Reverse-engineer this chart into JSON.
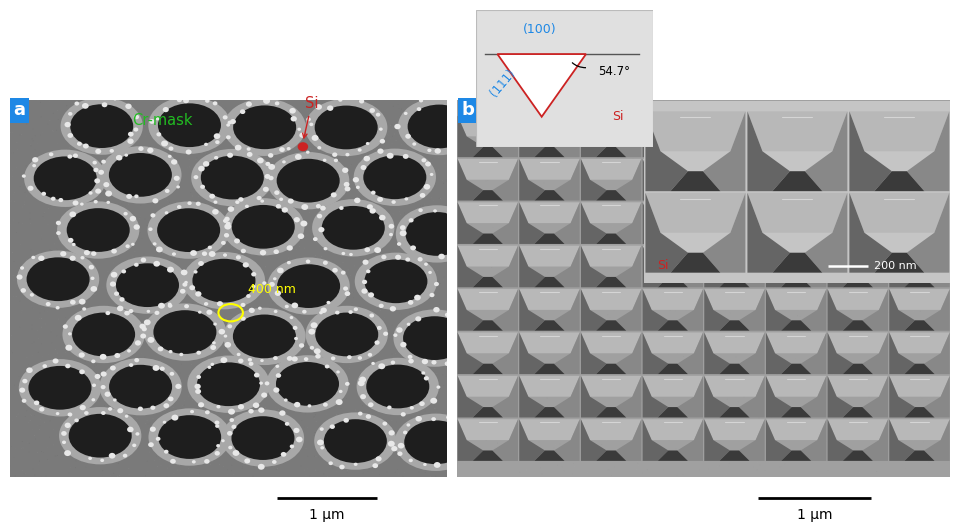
{
  "fig_width": 9.58,
  "fig_height": 5.24,
  "dpi": 100,
  "bg_color": "#ffffff",
  "panel_a_label": "a",
  "panel_b_label": "b",
  "label_bg_color": "#1E88E5",
  "label_text_color": "#ffffff",
  "cr_mask_text": "Cr-mask",
  "cr_mask_color": "#22bb22",
  "si_text_a": "Si",
  "si_text_a_color": "#cc2222",
  "scale_bar_a_text": "1 μm",
  "scale_bar_b_text": "1 μm",
  "circle_text": "400 nm",
  "circle_color": "#ffff00",
  "inset_border_color": "#cc2222",
  "inset_si_text": "Si",
  "inset_si_color": "#cc2222",
  "inset_scale_text": "200 nm",
  "inset_scale_color": "#ffffff",
  "diagram_100_text": "(100)",
  "diagram_100_color": "#1E88E5",
  "diagram_111_text": "(111)",
  "diagram_111_color": "#1E88E5",
  "diagram_angle_text": "54.7°",
  "diagram_si_text": "Si",
  "diagram_si_color": "#cc2222",
  "panel_a_sem_gray": "#7a7a7a",
  "panel_b_sem_gray": "#a0a0a0",
  "header_color": "#ffffff",
  "white_bar_color": "#f0f0f0"
}
